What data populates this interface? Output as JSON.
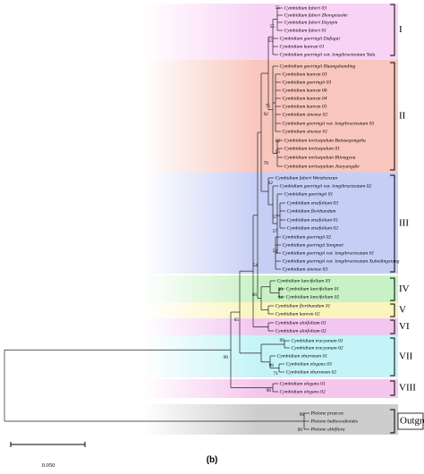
{
  "leaves": [
    "Cymbidium faberi 03",
    "Cymbidium faberi Zhongxiaohe",
    "Cymbidium faberi Dayipin",
    "Cymbidium faberi 01",
    "Cymbidium goeringii Dafugui",
    "Cymbidium kanran 01",
    "Cymbidium goeringii var. longibracteatum Yulu",
    "Cymbidium goeringii Huangshanding",
    "Cymbidium kanran 03",
    "Cymbidium goeringii 03",
    "Cymbidium kanran 06",
    "Cymbidium kanran 04",
    "Cymbidium kanran 05",
    "Cymbidium sinense 02",
    "Cymbidium goeringii var. longibracteatum 03",
    "Cymbidium sinense 01",
    "Cymbidium tortisepalum Baixuegongzhu",
    "Cymbidium tortisepalum 01",
    "Cymbidium tortisepalum Bilongyou",
    "Cymbidium tortisepalum Jiaoyangdie",
    "Cymbidium faberi Wenzhenxun",
    "Cymbidium goeringii var. longibracteatum 02",
    "Cymbidium goeringii 01",
    "Cymbidium ensifolium 03",
    "Cymbidium floribundum",
    "Cymbidium ensifolium 01",
    "Cymbidium ensifolium 02",
    "Cymbidium goeringii 02",
    "Cymbidium goeringii Songmei",
    "Cymbidium goeringii var. longibracteatum 01",
    "Cymbidium goeringii var. longibracteatum Xuhedingxiang",
    "Cymbidium sinense 03",
    "Cymbidium lancifolium 03",
    "Cymbidium lancifolium 01",
    "Cymbidium lancifolium 02",
    "Cymbidium floribundum 01",
    "Cymbidium kanran 02",
    "Cymbidium aloifolium 01",
    "Cymbidium aloifolium 02",
    "Cymbidium tracyanum 01",
    "Cymbidium tracyanum 02",
    "Cymbidium eburneum 01",
    "Cymbidium elegans 03",
    "Cymbidium eburneum 02",
    "Cymbidium elegans 01",
    "Cymbidium elegans 02",
    "Pleione praecox",
    "Pleione bulbocodioides",
    "Pleione albiflora"
  ],
  "bootstrap": [
    55,
    55,
    55,
    75,
    62,
    62,
    55,
    79,
    62,
    57,
    57,
    52,
    99,
    94,
    56,
    54,
    65,
    99,
    99,
    99,
    71,
    96,
    99,
    99
  ],
  "clades": [
    "I",
    "II",
    "III",
    "IV",
    "V",
    "VI",
    "VII",
    "VIII",
    "Outgroup"
  ],
  "scale_bar": "0.050",
  "caption": "(b)"
}
